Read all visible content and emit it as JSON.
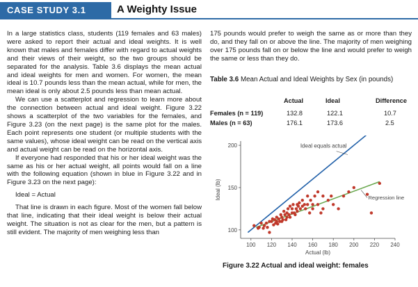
{
  "header": {
    "case_label": "CASE STUDY 3.1",
    "title": "A Weighty Issue"
  },
  "left_column": {
    "paragraphs": [
      "In a large statistics class, students (119 females and 63 males) were asked to report their actual and ideal weights. It is well known that males and females differ with regard to actual weights and their views of their weight, so the two groups should be separated for the analysis. Table 3.6 displays the mean actual and ideal weights for men and women. For women, the mean ideal is 10.7 pounds less than the mean actual, while for men, the mean ideal is only about 2.5 pounds less than mean actual.",
      "We can use a scatterplot and regression to learn more about the connection between actual and ideal weight. Figure 3.22 shows a scatterplot of the two variables for the females, and Figure 3.23 (on the next page) is the same plot for the males. Each point represents one student (or multiple students with the same values), whose ideal weight can be read on the vertical axis and actual weight can be read on the horizontal axis.",
      "If everyone had responded that his or her ideal weight was the same as his or her actual weight, all points would fall on a line with the following equation (shown in blue in Figure 3.22 and in Figure 3.23 on the next page):",
      "Ideal = Actual",
      "That line is drawn in each figure. Most of the women fall below that line, indicating that their ideal weight is below their actual weight. The situation is not as clear for the men, but a pattern is still evident. The majority of men weighing less than"
    ]
  },
  "right_column": {
    "paragraph": "175 pounds would prefer to weigh the same as or more than they do, and they fall on or above the line. The majority of men weighing over 175 pounds fall on or below the line and would prefer to weigh the same or less than they do."
  },
  "table": {
    "caption_label": "Table 3.6",
    "caption_text": "Mean Actual and Ideal Weights by Sex (in pounds)",
    "headers": [
      "Actual",
      "Ideal",
      "Difference"
    ],
    "rows": [
      {
        "label": "Females (n = 119)",
        "actual": "132.8",
        "ideal": "122.1",
        "difference": "10.7"
      },
      {
        "label": "Males (n = 63)",
        "actual": "176.1",
        "ideal": "173.6",
        "difference": "2.5"
      }
    ]
  },
  "figure": {
    "caption_label": "Figure 3.22",
    "caption_text": "Actual and ideal weight: females"
  },
  "chart_data": {
    "type": "scatter",
    "title": "",
    "xlabel": "Actual (lb)",
    "ylabel": "Ideal (lb)",
    "xlim": [
      90,
      240
    ],
    "ylim": [
      90,
      205
    ],
    "x_ticks": [
      100,
      120,
      140,
      160,
      180,
      200,
      220,
      240
    ],
    "y_ticks": [
      100,
      150,
      200
    ],
    "colors": {
      "points": "#c0392b",
      "identity_line": "#1f5fa8",
      "regression_line": "#6aa84f"
    },
    "lines": [
      {
        "name": "Ideal equals actual",
        "x": [
          97,
          225
        ],
        "y": [
          97,
          225
        ]
      },
      {
        "name": "Regression line",
        "x": [
          105,
          225
        ],
        "y": [
          103.0,
          157.0
        ]
      }
    ],
    "annotations": [
      "Ideal equals actual",
      "Regression line"
    ],
    "points": [
      [
        103,
        105
      ],
      [
        107,
        102
      ],
      [
        108,
        103
      ],
      [
        110,
        108
      ],
      [
        112,
        102
      ],
      [
        113,
        105
      ],
      [
        115,
        108
      ],
      [
        116,
        103
      ],
      [
        118,
        110
      ],
      [
        118,
        97
      ],
      [
        120,
        110
      ],
      [
        121,
        113
      ],
      [
        122,
        106
      ],
      [
        123,
        112
      ],
      [
        124,
        108
      ],
      [
        125,
        115
      ],
      [
        125,
        110
      ],
      [
        126,
        107
      ],
      [
        127,
        113
      ],
      [
        128,
        110
      ],
      [
        129,
        118
      ],
      [
        130,
        115
      ],
      [
        130,
        110
      ],
      [
        131,
        112
      ],
      [
        132,
        122
      ],
      [
        133,
        118
      ],
      [
        134,
        112
      ],
      [
        135,
        120
      ],
      [
        135,
        115
      ],
      [
        136,
        125
      ],
      [
        137,
        118
      ],
      [
        138,
        128
      ],
      [
        138,
        115
      ],
      [
        140,
        120
      ],
      [
        140,
        125
      ],
      [
        141,
        130
      ],
      [
        142,
        120
      ],
      [
        143,
        118
      ],
      [
        144,
        125
      ],
      [
        145,
        130
      ],
      [
        145,
        122
      ],
      [
        146,
        128
      ],
      [
        147,
        132
      ],
      [
        148,
        125
      ],
      [
        150,
        135
      ],
      [
        150,
        128
      ],
      [
        152,
        130
      ],
      [
        153,
        125
      ],
      [
        155,
        130
      ],
      [
        155,
        140
      ],
      [
        157,
        120
      ],
      [
        158,
        135
      ],
      [
        160,
        125
      ],
      [
        160,
        130
      ],
      [
        162,
        140
      ],
      [
        165,
        130
      ],
      [
        165,
        145
      ],
      [
        168,
        120
      ],
      [
        170,
        125
      ],
      [
        170,
        140
      ],
      [
        175,
        135
      ],
      [
        178,
        140
      ],
      [
        180,
        130
      ],
      [
        185,
        125
      ],
      [
        190,
        140
      ],
      [
        195,
        145
      ],
      [
        200,
        150
      ],
      [
        213,
        142
      ],
      [
        217,
        120
      ],
      [
        225,
        155
      ]
    ]
  }
}
